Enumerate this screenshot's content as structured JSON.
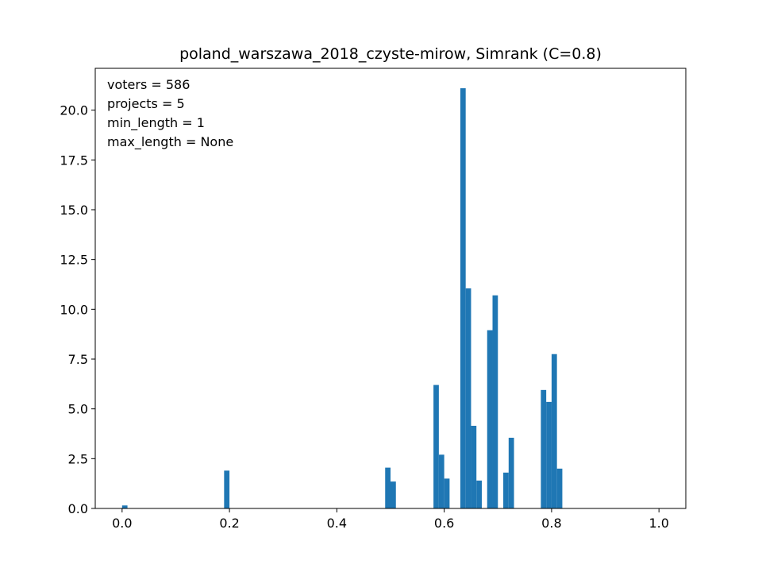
{
  "chart_data": {
    "type": "bar",
    "title": "poland_warszawa_2018_czyste-mirow, Simrank (C=0.8)",
    "xlabel": "",
    "ylabel": "",
    "xlim": [
      -0.05,
      1.05
    ],
    "ylim": [
      0,
      22.1
    ],
    "bin_width": 0.01,
    "bar_color": "#1f77b4",
    "annotations": [
      "voters = 586",
      "projects = 5",
      "min_length = 1",
      "max_length = None"
    ],
    "x_ticks": [
      0.0,
      0.2,
      0.4,
      0.6,
      0.8,
      1.0
    ],
    "x_tick_labels": [
      "0.0",
      "0.2",
      "0.4",
      "0.6",
      "0.8",
      "1.0"
    ],
    "y_ticks": [
      0.0,
      2.5,
      5.0,
      7.5,
      10.0,
      12.5,
      15.0,
      17.5,
      20.0
    ],
    "y_tick_labels": [
      "0.0",
      "2.5",
      "5.0",
      "7.5",
      "10.0",
      "12.5",
      "15.0",
      "17.5",
      "20.0"
    ],
    "bins": [
      {
        "x": 0.0,
        "value": 0.15
      },
      {
        "x": 0.19,
        "value": 1.9
      },
      {
        "x": 0.49,
        "value": 2.05
      },
      {
        "x": 0.5,
        "value": 1.35
      },
      {
        "x": 0.58,
        "value": 6.2
      },
      {
        "x": 0.59,
        "value": 2.7
      },
      {
        "x": 0.6,
        "value": 1.5
      },
      {
        "x": 0.63,
        "value": 21.1
      },
      {
        "x": 0.64,
        "value": 11.05
      },
      {
        "x": 0.65,
        "value": 4.15
      },
      {
        "x": 0.66,
        "value": 1.4
      },
      {
        "x": 0.68,
        "value": 8.95
      },
      {
        "x": 0.69,
        "value": 10.7
      },
      {
        "x": 0.71,
        "value": 1.8
      },
      {
        "x": 0.72,
        "value": 3.55
      },
      {
        "x": 0.78,
        "value": 5.95
      },
      {
        "x": 0.79,
        "value": 5.35
      },
      {
        "x": 0.8,
        "value": 7.75
      },
      {
        "x": 0.81,
        "value": 2.0
      }
    ]
  }
}
